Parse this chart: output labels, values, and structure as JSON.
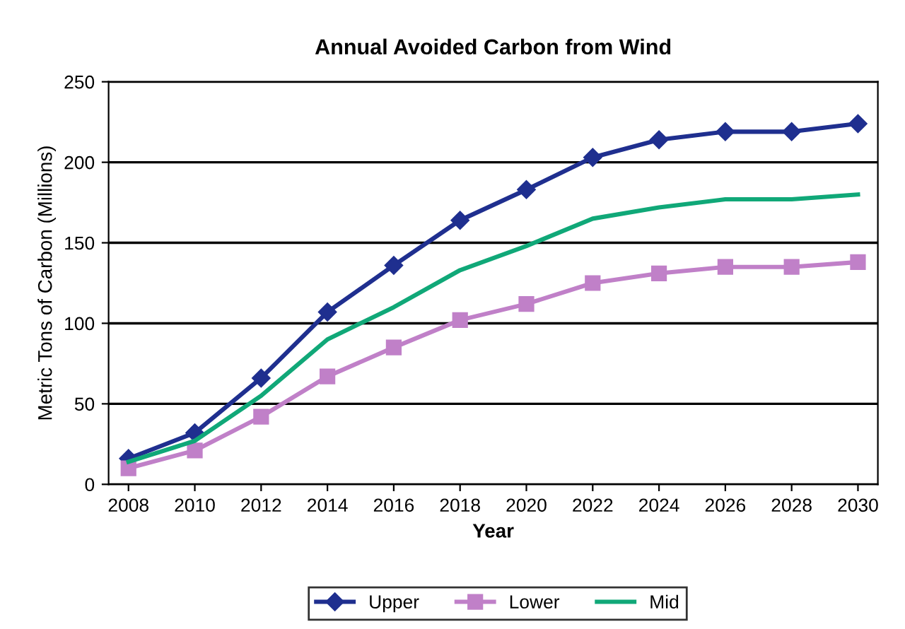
{
  "chart_data": {
    "type": "line",
    "title": "Annual Avoided Carbon from Wind",
    "xlabel": "Year",
    "ylabel": "Metric Tons of Carbon (Millions)",
    "categories": [
      "2008",
      "2010",
      "2012",
      "2014",
      "2016",
      "2018",
      "2020",
      "2022",
      "2024",
      "2026",
      "2028",
      "2030"
    ],
    "ylim": [
      0,
      250
    ],
    "yticks": [
      0,
      50,
      100,
      150,
      200,
      250
    ],
    "grid": "y",
    "legend": "bottom",
    "series": [
      {
        "name": "Upper",
        "color": "#1f2f8f",
        "marker": "diamond",
        "values": [
          16,
          32,
          66,
          107,
          136,
          164,
          183,
          203,
          214,
          219,
          219,
          224
        ]
      },
      {
        "name": "Lower",
        "color": "#c080c8",
        "marker": "square",
        "values": [
          10,
          21,
          42,
          67,
          85,
          102,
          112,
          125,
          131,
          135,
          135,
          138
        ]
      },
      {
        "name": "Mid",
        "color": "#10a878",
        "marker": "none",
        "values": [
          14,
          27,
          55,
          90,
          110,
          133,
          148,
          165,
          172,
          177,
          177,
          180
        ]
      }
    ]
  }
}
